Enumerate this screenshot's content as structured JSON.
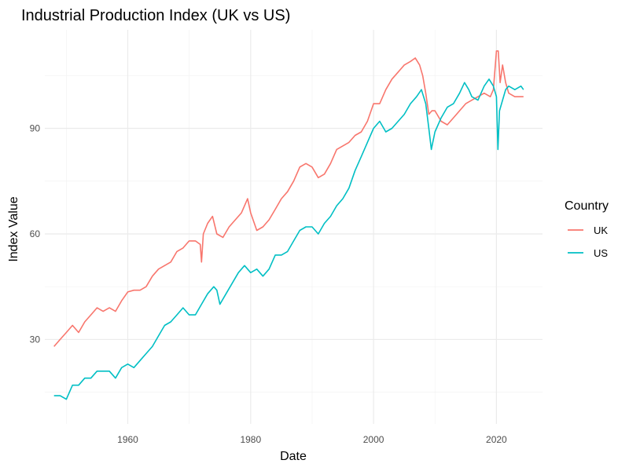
{
  "chart_data": {
    "type": "line",
    "title": "Industrial Production Index (UK vs US)",
    "xlabel": "Date",
    "ylabel": "Index Value",
    "xlim": [
      1946.5,
      2027.5
    ],
    "ylim": [
      6,
      118
    ],
    "x_ticks": [
      1960,
      1980,
      2000,
      2020
    ],
    "y_ticks": [
      30,
      60,
      90
    ],
    "grid": true,
    "legend": {
      "title": "Country",
      "position": "right"
    },
    "series": [
      {
        "name": "UK",
        "color": "#F8766D",
        "x": [
          1948.0,
          1949.0,
          1950.0,
          1951.0,
          1952.0,
          1953.0,
          1954.0,
          1955.0,
          1956.0,
          1957.0,
          1958.0,
          1959.0,
          1960.0,
          1961.0,
          1962.0,
          1963.0,
          1964.0,
          1965.0,
          1966.0,
          1967.0,
          1968.0,
          1969.0,
          1970.0,
          1971.0,
          1971.8,
          1972.0,
          1972.3,
          1973.0,
          1973.8,
          1974.5,
          1975.5,
          1976.5,
          1977.5,
          1978.5,
          1979.5,
          1980.0,
          1981.0,
          1982.0,
          1983.0,
          1984.0,
          1985.0,
          1986.0,
          1987.0,
          1988.0,
          1989.0,
          1990.0,
          1991.0,
          1992.0,
          1993.0,
          1994.0,
          1995.0,
          1996.0,
          1997.0,
          1998.0,
          1999.0,
          2000.0,
          2001.0,
          2002.0,
          2003.0,
          2004.0,
          2005.0,
          2006.0,
          2006.8,
          2007.5,
          2008.0,
          2008.5,
          2009.0,
          2009.5,
          2010.0,
          2011.0,
          2012.0,
          2013.0,
          2014.0,
          2015.0,
          2016.0,
          2017.0,
          2018.0,
          2019.0,
          2019.5,
          2020.0,
          2020.3,
          2020.6,
          2021.0,
          2021.5,
          2022.0,
          2023.0,
          2024.0,
          2024.4
        ],
        "values": [
          28,
          30,
          32,
          34,
          32,
          35,
          37,
          39,
          38,
          39,
          38,
          41,
          43.5,
          44,
          44,
          45,
          48,
          50,
          51,
          52,
          55,
          56,
          58,
          58,
          57,
          52,
          60,
          63,
          65,
          60,
          59,
          62,
          64,
          66,
          70,
          66,
          61,
          62,
          64,
          67,
          70,
          72,
          75,
          79,
          80,
          79,
          76,
          77,
          80,
          84,
          85,
          86,
          88,
          89,
          92,
          97,
          97,
          101,
          104,
          106,
          108,
          109,
          110,
          108,
          105,
          100,
          94,
          95,
          95,
          92,
          91,
          93,
          95,
          97,
          98,
          99,
          100,
          99,
          101,
          112,
          112,
          103,
          108,
          103,
          100,
          99,
          99,
          99
        ]
      },
      {
        "name": "US",
        "color": "#00BFC4",
        "x": [
          1948.0,
          1949.0,
          1950.0,
          1951.0,
          1952.0,
          1953.0,
          1954.0,
          1955.0,
          1956.0,
          1957.0,
          1958.0,
          1959.0,
          1960.0,
          1961.0,
          1962.0,
          1963.0,
          1964.0,
          1965.0,
          1966.0,
          1967.0,
          1968.0,
          1969.0,
          1970.0,
          1971.0,
          1972.0,
          1973.0,
          1974.0,
          1974.5,
          1975.0,
          1976.0,
          1977.0,
          1978.0,
          1979.0,
          1980.0,
          1981.0,
          1982.0,
          1983.0,
          1984.0,
          1985.0,
          1986.0,
          1987.0,
          1988.0,
          1989.0,
          1990.0,
          1991.0,
          1992.0,
          1993.0,
          1994.0,
          1995.0,
          1996.0,
          1997.0,
          1998.0,
          1999.0,
          2000.0,
          2001.0,
          2002.0,
          2003.0,
          2004.0,
          2005.0,
          2006.0,
          2007.0,
          2007.8,
          2008.5,
          2009.0,
          2009.4,
          2010.0,
          2011.0,
          2012.0,
          2013.0,
          2014.0,
          2014.8,
          2015.5,
          2016.0,
          2017.0,
          2018.0,
          2018.8,
          2019.5,
          2020.0,
          2020.25,
          2020.5,
          2021.0,
          2021.5,
          2022.0,
          2023.0,
          2024.0,
          2024.4
        ],
        "values": [
          14,
          14,
          13,
          17,
          17,
          19,
          19,
          21,
          21,
          21,
          19,
          22,
          23,
          22,
          24,
          26,
          28,
          31,
          34,
          35,
          37,
          39,
          37,
          37,
          40,
          43,
          45,
          44,
          40,
          43,
          46,
          49,
          51,
          49,
          50,
          48,
          50,
          54,
          54,
          55,
          58,
          61,
          62,
          62,
          60,
          63,
          65,
          68,
          70,
          73,
          78,
          82,
          86,
          90,
          92,
          89,
          90,
          92,
          94,
          97,
          99,
          101,
          97,
          90,
          84,
          89,
          93,
          96,
          97,
          100,
          103,
          101,
          99,
          98,
          102,
          104,
          102,
          99,
          84,
          95,
          98,
          101,
          102,
          101,
          102,
          101
        ]
      }
    ]
  }
}
